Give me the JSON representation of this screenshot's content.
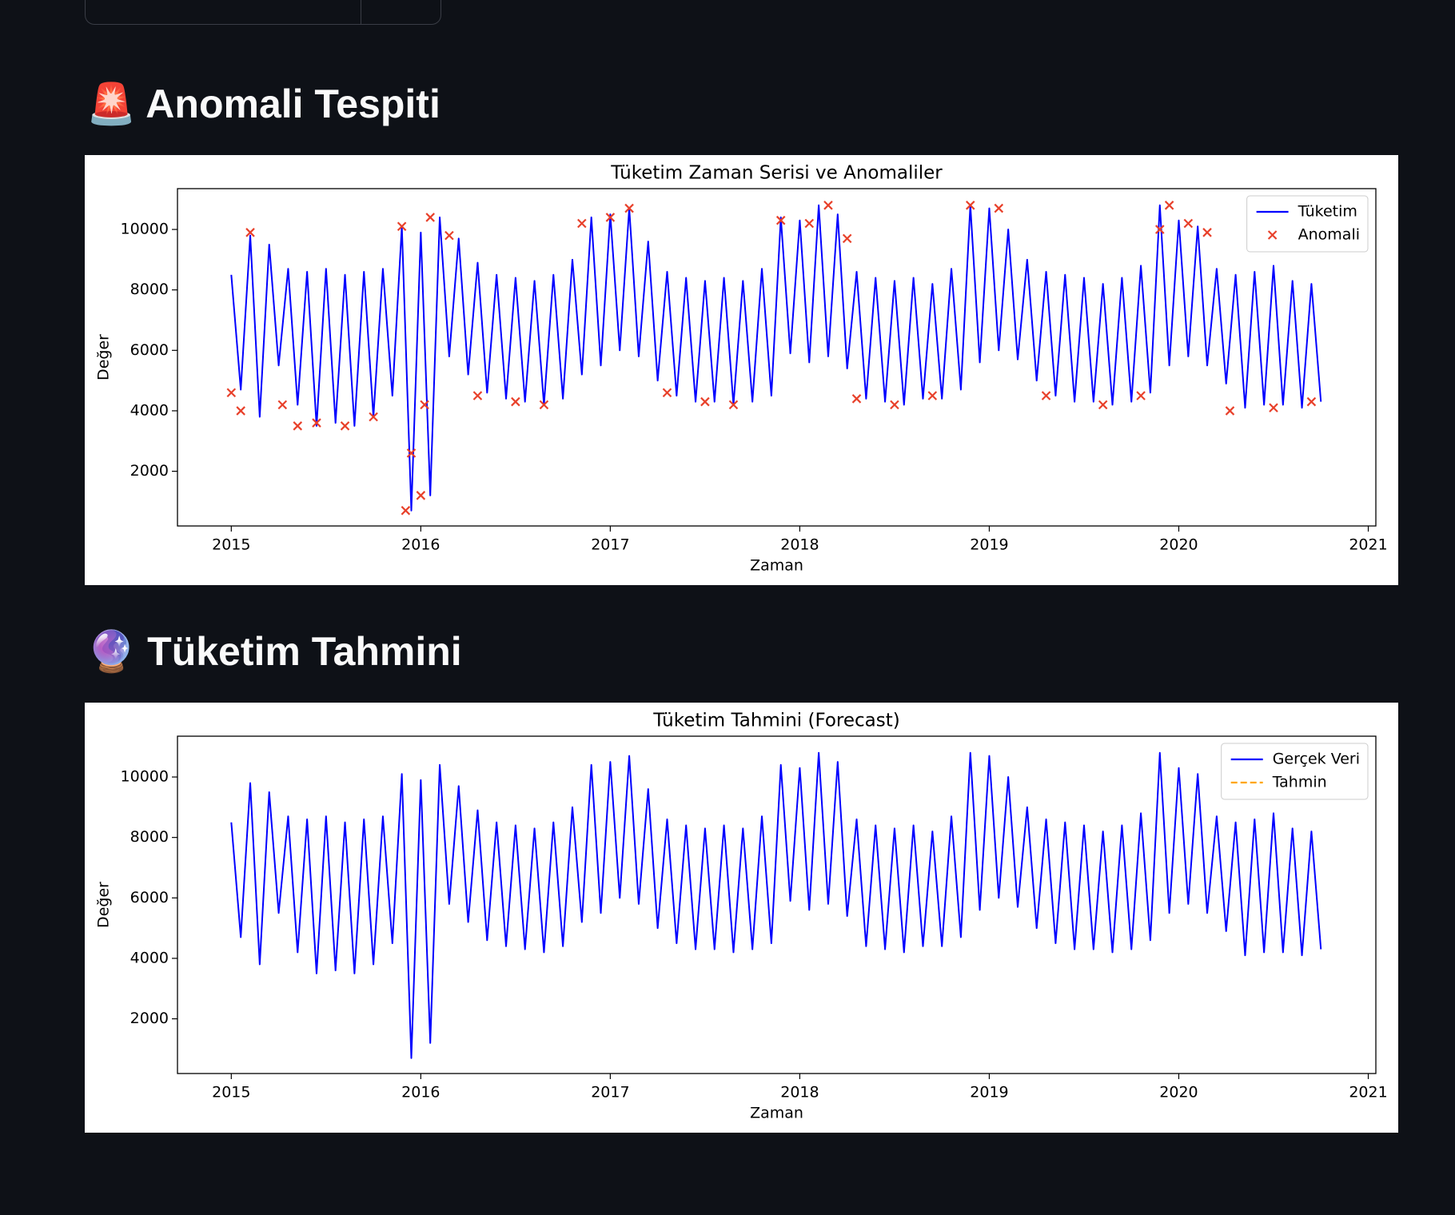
{
  "sections": [
    {
      "heading": "🚨 Anomali Tespiti",
      "chart_data": {
        "type": "line",
        "title": "Tüketim Zaman Serisi ve Anomaliler",
        "x_label": "Zaman",
        "y_label": "Değer",
        "xlim": [
          2014.716,
          2021.04
        ],
        "ylim": [
          190,
          11350
        ],
        "xticks": [
          2015,
          2016,
          2017,
          2018,
          2019,
          2020,
          2021
        ],
        "yticks": [
          2000,
          4000,
          6000,
          8000,
          10000
        ],
        "grid": false,
        "legend": "upper right",
        "series": [
          {
            "name": "Tüketim",
            "type": "line",
            "color": "#0000ff",
            "x": [
              2015.0,
              2015.05,
              2015.1,
              2015.15,
              2015.2,
              2015.25,
              2015.3,
              2015.35,
              2015.4,
              2015.45,
              2015.5,
              2015.55,
              2015.6,
              2015.65,
              2015.7,
              2015.75,
              2015.8,
              2015.85,
              2015.9,
              2015.95,
              2016.0,
              2016.05,
              2016.1,
              2016.15,
              2016.2,
              2016.25,
              2016.3,
              2016.35,
              2016.4,
              2016.45,
              2016.5,
              2016.55,
              2016.6,
              2016.65,
              2016.7,
              2016.75,
              2016.8,
              2016.85,
              2016.9,
              2016.95,
              2017.0,
              2017.05,
              2017.1,
              2017.15,
              2017.2,
              2017.25,
              2017.3,
              2017.35,
              2017.4,
              2017.45,
              2017.5,
              2017.55,
              2017.6,
              2017.65,
              2017.7,
              2017.75,
              2017.8,
              2017.85,
              2017.9,
              2017.95,
              2018.0,
              2018.05,
              2018.1,
              2018.15,
              2018.2,
              2018.25,
              2018.3,
              2018.35,
              2018.4,
              2018.45,
              2018.5,
              2018.55,
              2018.6,
              2018.65,
              2018.7,
              2018.75,
              2018.8,
              2018.85,
              2018.9,
              2018.95,
              2019.0,
              2019.05,
              2019.1,
              2019.15,
              2019.2,
              2019.25,
              2019.3,
              2019.35,
              2019.4,
              2019.45,
              2019.5,
              2019.55,
              2019.6,
              2019.65,
              2019.7,
              2019.75,
              2019.8,
              2019.85,
              2019.9,
              2019.95,
              2020.0,
              2020.05,
              2020.1,
              2020.15,
              2020.2,
              2020.25,
              2020.3,
              2020.35,
              2020.4,
              2020.45,
              2020.5,
              2020.55,
              2020.6,
              2020.65,
              2020.7,
              2020.75
            ],
            "values": [
              8500,
              4700,
              9800,
              3800,
              9500,
              5500,
              8700,
              4200,
              8600,
              3500,
              8700,
              3600,
              8500,
              3500,
              8600,
              3800,
              8700,
              4500,
              10100,
              700,
              9900,
              1200,
              10400,
              5800,
              9700,
              5200,
              8900,
              4600,
              8500,
              4400,
              8400,
              4300,
              8300,
              4200,
              8500,
              4400,
              9000,
              5200,
              10400,
              5500,
              10500,
              6000,
              10700,
              5800,
              9600,
              5000,
              8600,
              4500,
              8400,
              4300,
              8300,
              4300,
              8400,
              4200,
              8300,
              4300,
              8700,
              4500,
              10400,
              5900,
              10300,
              5600,
              10800,
              5800,
              10500,
              5400,
              8600,
              4400,
              8400,
              4300,
              8300,
              4200,
              8400,
              4400,
              8200,
              4400,
              8700,
              4700,
              10800,
              5600,
              10700,
              6000,
              10000,
              5700,
              9000,
              5000,
              8600,
              4500,
              8500,
              4300,
              8400,
              4300,
              8200,
              4200,
              8400,
              4300,
              8800,
              4600,
              10800,
              5500,
              10300,
              5800,
              10100,
              5500,
              8700,
              4900,
              8500,
              4100,
              8600,
              4200,
              8800,
              4200,
              8300,
              4100,
              8200,
              4300
            ]
          },
          {
            "name": "Anomali",
            "type": "scatter",
            "marker": "x",
            "color": "#e8402a",
            "x": [
              2015.0,
              2015.05,
              2015.1,
              2015.27,
              2015.35,
              2015.45,
              2015.6,
              2015.75,
              2015.9,
              2015.92,
              2015.95,
              2016.0,
              2016.02,
              2016.05,
              2016.15,
              2016.3,
              2016.5,
              2016.65,
              2016.85,
              2017.0,
              2017.1,
              2017.3,
              2017.5,
              2017.65,
              2017.9,
              2018.05,
              2018.15,
              2018.25,
              2018.3,
              2018.5,
              2018.7,
              2018.9,
              2019.05,
              2019.3,
              2019.6,
              2019.8,
              2019.9,
              2019.95,
              2020.05,
              2020.15,
              2020.27,
              2020.5,
              2020.7
            ],
            "values": [
              4600,
              4000,
              9900,
              4200,
              3500,
              3600,
              3500,
              3800,
              10100,
              700,
              2600,
              1200,
              4200,
              10400,
              9800,
              4500,
              4300,
              4200,
              10200,
              10400,
              10700,
              4600,
              4300,
              4200,
              10300,
              10200,
              10800,
              9700,
              4400,
              4200,
              4500,
              10800,
              10700,
              4500,
              4200,
              4500,
              10000,
              10800,
              10200,
              9900,
              4000,
              4100,
              4300
            ]
          }
        ]
      }
    },
    {
      "heading": "🔮 Tüketim Tahmini",
      "chart_data": {
        "type": "line",
        "title": "Tüketim Tahmini (Forecast)",
        "x_label": "Zaman",
        "y_label": "Değer",
        "xlim": [
          2014.716,
          2021.04
        ],
        "ylim": [
          190,
          11350
        ],
        "xticks": [
          2015,
          2016,
          2017,
          2018,
          2019,
          2020,
          2021
        ],
        "yticks": [
          2000,
          4000,
          6000,
          8000,
          10000
        ],
        "grid": false,
        "legend": "upper right",
        "series": [
          {
            "name": "Gerçek Veri",
            "type": "line",
            "color": "#0000ff",
            "x": [
              2015.0,
              2015.05,
              2015.1,
              2015.15,
              2015.2,
              2015.25,
              2015.3,
              2015.35,
              2015.4,
              2015.45,
              2015.5,
              2015.55,
              2015.6,
              2015.65,
              2015.7,
              2015.75,
              2015.8,
              2015.85,
              2015.9,
              2015.95,
              2016.0,
              2016.05,
              2016.1,
              2016.15,
              2016.2,
              2016.25,
              2016.3,
              2016.35,
              2016.4,
              2016.45,
              2016.5,
              2016.55,
              2016.6,
              2016.65,
              2016.7,
              2016.75,
              2016.8,
              2016.85,
              2016.9,
              2016.95,
              2017.0,
              2017.05,
              2017.1,
              2017.15,
              2017.2,
              2017.25,
              2017.3,
              2017.35,
              2017.4,
              2017.45,
              2017.5,
              2017.55,
              2017.6,
              2017.65,
              2017.7,
              2017.75,
              2017.8,
              2017.85,
              2017.9,
              2017.95,
              2018.0,
              2018.05,
              2018.1,
              2018.15,
              2018.2,
              2018.25,
              2018.3,
              2018.35,
              2018.4,
              2018.45,
              2018.5,
              2018.55,
              2018.6,
              2018.65,
              2018.7,
              2018.75,
              2018.8,
              2018.85,
              2018.9,
              2018.95,
              2019.0,
              2019.05,
              2019.1,
              2019.15,
              2019.2,
              2019.25,
              2019.3,
              2019.35,
              2019.4,
              2019.45,
              2019.5,
              2019.55,
              2019.6,
              2019.65,
              2019.7,
              2019.75,
              2019.8,
              2019.85,
              2019.9,
              2019.95,
              2020.0,
              2020.05,
              2020.1,
              2020.15,
              2020.2,
              2020.25,
              2020.3,
              2020.35,
              2020.4,
              2020.45,
              2020.5,
              2020.55,
              2020.6,
              2020.65,
              2020.7,
              2020.75
            ],
            "values": [
              8500,
              4700,
              9800,
              3800,
              9500,
              5500,
              8700,
              4200,
              8600,
              3500,
              8700,
              3600,
              8500,
              3500,
              8600,
              3800,
              8700,
              4500,
              10100,
              700,
              9900,
              1200,
              10400,
              5800,
              9700,
              5200,
              8900,
              4600,
              8500,
              4400,
              8400,
              4300,
              8300,
              4200,
              8500,
              4400,
              9000,
              5200,
              10400,
              5500,
              10500,
              6000,
              10700,
              5800,
              9600,
              5000,
              8600,
              4500,
              8400,
              4300,
              8300,
              4300,
              8400,
              4200,
              8300,
              4300,
              8700,
              4500,
              10400,
              5900,
              10300,
              5600,
              10800,
              5800,
              10500,
              5400,
              8600,
              4400,
              8400,
              4300,
              8300,
              4200,
              8400,
              4400,
              8200,
              4400,
              8700,
              4700,
              10800,
              5600,
              10700,
              6000,
              10000,
              5700,
              9000,
              5000,
              8600,
              4500,
              8500,
              4300,
              8400,
              4300,
              8200,
              4200,
              8400,
              4300,
              8800,
              4600,
              10800,
              5500,
              10300,
              5800,
              10100,
              5500,
              8700,
              4900,
              8500,
              4100,
              8600,
              4200,
              8800,
              4200,
              8300,
              4100,
              8200,
              4300
            ]
          },
          {
            "name": "Tahmin",
            "type": "line",
            "dashed": true,
            "color": "#ffa500",
            "x": [],
            "values": []
          }
        ]
      }
    }
  ]
}
